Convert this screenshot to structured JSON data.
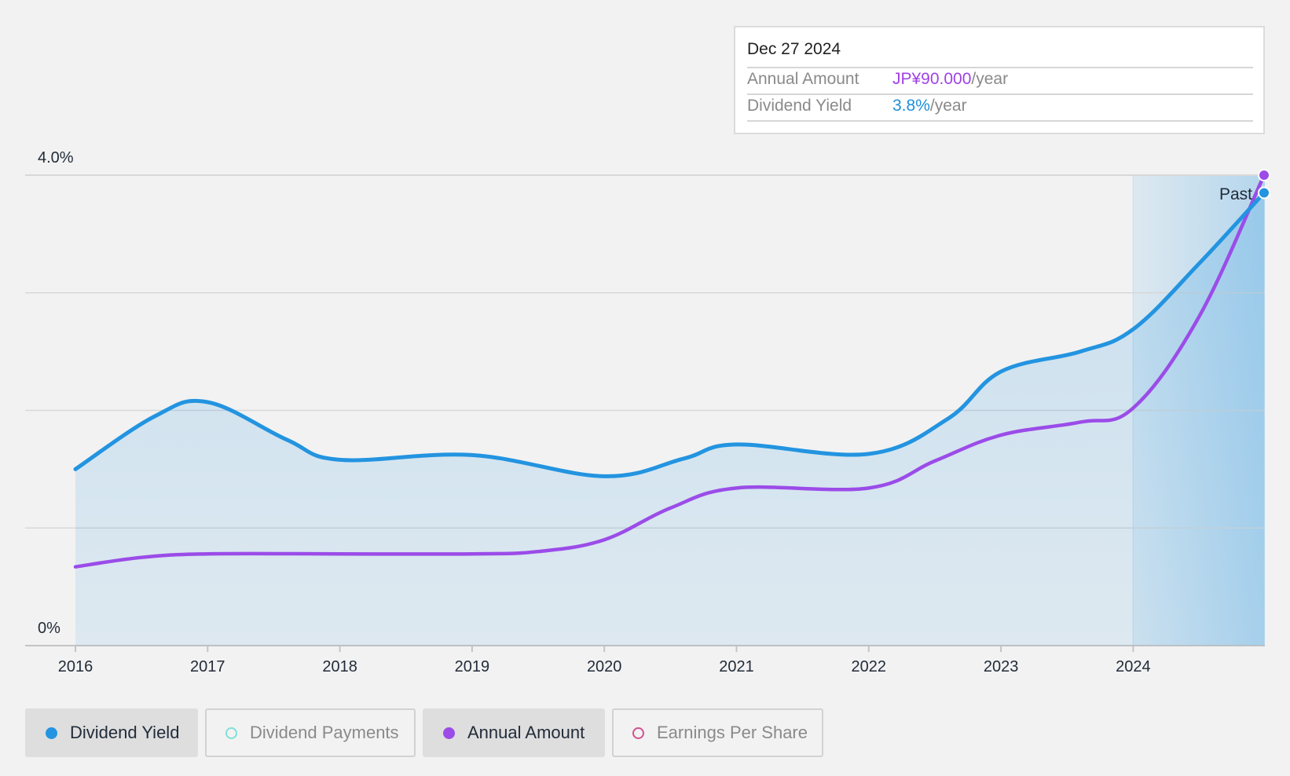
{
  "tooltip": {
    "date": "Dec 27 2024",
    "annual_amount_label": "Annual Amount",
    "annual_amount_value": "JP¥90.000",
    "annual_amount_suffix": "/year",
    "dividend_yield_label": "Dividend Yield",
    "dividend_yield_value": "3.8%",
    "dividend_yield_suffix": "/year"
  },
  "past_label": "Past",
  "legend": [
    {
      "label": "Dividend Yield",
      "color": "#2394e0",
      "filled": true,
      "active": true
    },
    {
      "label": "Dividend Payments",
      "color": "#7fe0d8",
      "filled": false,
      "active": false
    },
    {
      "label": "Annual Amount",
      "color": "#9b4ce8",
      "filled": true,
      "active": true
    },
    {
      "label": "Earnings Per Share",
      "color": "#d0528f",
      "filled": false,
      "active": false
    }
  ],
  "chart_data": {
    "type": "area",
    "title": "",
    "xlabel": "",
    "ylabel": "",
    "ylim": [
      0,
      4.0
    ],
    "y_tick_labels": [
      "4.0%",
      "0%"
    ],
    "xlim": [
      2016,
      2024.99
    ],
    "x_tick_labels": [
      "2016",
      "2017",
      "2018",
      "2019",
      "2020",
      "2021",
      "2022",
      "2023",
      "2024"
    ],
    "past_region_start": 2024,
    "grid": true,
    "legend_position": "bottom",
    "series": [
      {
        "name": "Dividend Yield",
        "unit": "%",
        "color": "#2394e0",
        "filled": true,
        "x": [
          2016,
          2016.6,
          2017,
          2017.6,
          2018,
          2019,
          2020,
          2020.6,
          2021,
          2022,
          2022.6,
          2023,
          2023.6,
          2024,
          2024.5,
          2024.99
        ],
        "y": [
          1.5,
          1.95,
          2.07,
          1.75,
          1.58,
          1.62,
          1.44,
          1.59,
          1.71,
          1.63,
          1.93,
          2.33,
          2.5,
          2.69,
          3.25,
          3.85
        ]
      },
      {
        "name": "Annual Amount",
        "unit": "JP¥ (plotted on relative scale)",
        "color": "#9b4ce8",
        "filled": false,
        "x": [
          2016,
          2016.5,
          2017,
          2018,
          2019,
          2019.5,
          2020,
          2020.5,
          2021,
          2022,
          2022.5,
          2023,
          2023.6,
          2024,
          2024.5,
          2024.99
        ],
        "y": [
          0.67,
          0.75,
          0.78,
          0.78,
          0.78,
          0.8,
          0.9,
          1.17,
          1.34,
          1.34,
          1.57,
          1.79,
          1.9,
          2.02,
          2.8,
          4.0
        ]
      }
    ],
    "end_marker_values": {
      "Dividend Yield": 3.8,
      "Annual Amount": "JP¥90.000"
    }
  }
}
